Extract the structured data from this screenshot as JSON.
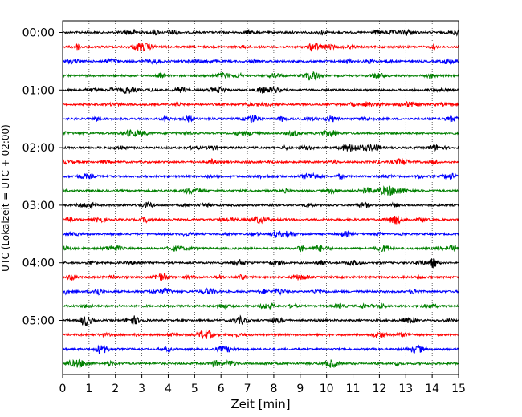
{
  "chart_data": {
    "type": "line",
    "title": "",
    "xlabel": "Zeit  [min]",
    "ylabel": "UTC (Lokalzeit = UTC + 02:00)",
    "xlim": [
      0,
      15
    ],
    "x_ticks": [
      "0",
      "1",
      "2",
      "3",
      "4",
      "5",
      "6",
      "7",
      "8",
      "9",
      "10",
      "11",
      "12",
      "13",
      "14",
      "15"
    ],
    "y_ticks": [
      "00:00",
      "01:00",
      "02:00",
      "03:00",
      "04:00",
      "05:00"
    ],
    "grid": "vertical dotted lines at each minute",
    "minutes_per_line": 15,
    "lines_per_hour": 4,
    "line_count": 24,
    "line_colors": [
      "#000000",
      "#ff0000",
      "#0000ff",
      "#008000"
    ],
    "series": [
      {
        "start": "00:00"
      },
      {
        "start": "00:15"
      },
      {
        "start": "00:30"
      },
      {
        "start": "00:45"
      },
      {
        "start": "01:00"
      },
      {
        "start": "01:15"
      },
      {
        "start": "01:30"
      },
      {
        "start": "01:45"
      },
      {
        "start": "02:00"
      },
      {
        "start": "02:15"
      },
      {
        "start": "02:30"
      },
      {
        "start": "02:45"
      },
      {
        "start": "03:00"
      },
      {
        "start": "03:15"
      },
      {
        "start": "03:30"
      },
      {
        "start": "03:45"
      },
      {
        "start": "04:00"
      },
      {
        "start": "04:15"
      },
      {
        "start": "04:30"
      },
      {
        "start": "04:45"
      },
      {
        "start": "05:00"
      },
      {
        "start": "05:15"
      },
      {
        "start": "05:30"
      },
      {
        "start": "05:45"
      }
    ]
  }
}
